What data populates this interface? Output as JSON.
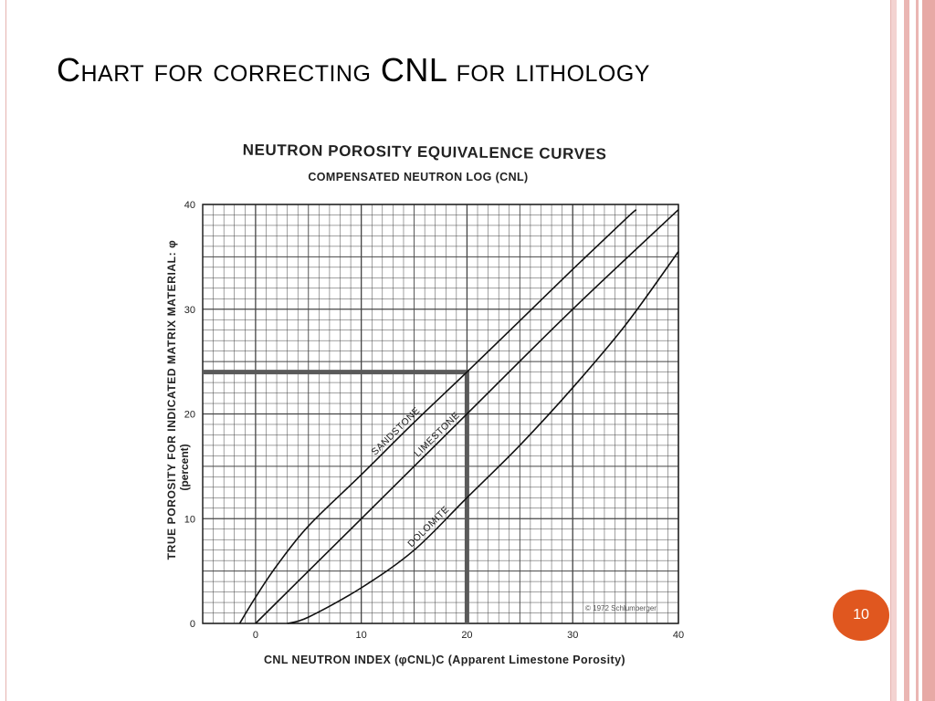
{
  "slide": {
    "title": "Chart for correcting CNL for lithology",
    "page_number": "10",
    "accent_color": "#e0571f",
    "frame_color": "#e6b3b0"
  },
  "chart_data": {
    "type": "line",
    "title": "NEUTRON POROSITY EQUIVALENCE CURVES",
    "subtitle": "COMPENSATED NEUTRON LOG (CNL)",
    "xlabel": "CNL NEUTRON INDEX (φCNL)C (Apparent Limestone Porosity)",
    "ylabel": "TRUE POROSITY FOR INDICATED MATRIX MATERIAL: φ",
    "ylabel_unit": "(percent)",
    "xlim": [
      -5,
      40
    ],
    "ylim": [
      0,
      40
    ],
    "xticks": [
      0,
      10,
      20,
      30,
      40
    ],
    "yticks": [
      0,
      10,
      20,
      30,
      40
    ],
    "x_tick_labels": [
      "0",
      "10",
      "20",
      "30",
      "40"
    ],
    "y_tick_labels": [
      "0",
      "10",
      "20",
      "30",
      "40"
    ],
    "grid": true,
    "copyright": "© 1972 Schlumberger",
    "series": [
      {
        "name": "SANDSTONE",
        "x": [
          -1.5,
          0,
          2,
          5,
          10,
          15,
          20,
          25,
          30,
          35,
          36
        ],
        "y": [
          0,
          2.5,
          5.5,
          9.3,
          14.2,
          19.2,
          24.0,
          28.9,
          33.8,
          38.6,
          39.5
        ]
      },
      {
        "name": "LIMESTONE",
        "x": [
          0,
          10,
          20,
          30,
          40
        ],
        "y": [
          0,
          10,
          20,
          30,
          39.5
        ]
      },
      {
        "name": "DOLOMITE",
        "x": [
          3,
          5,
          10,
          15,
          20,
          25,
          30,
          35,
          40
        ],
        "y": [
          0,
          0.6,
          3.4,
          7.0,
          12.0,
          17.0,
          22.5,
          28.5,
          35.5
        ]
      }
    ],
    "example_path": {
      "x": [
        -5,
        20,
        20
      ],
      "y": [
        24,
        24,
        0
      ]
    }
  }
}
